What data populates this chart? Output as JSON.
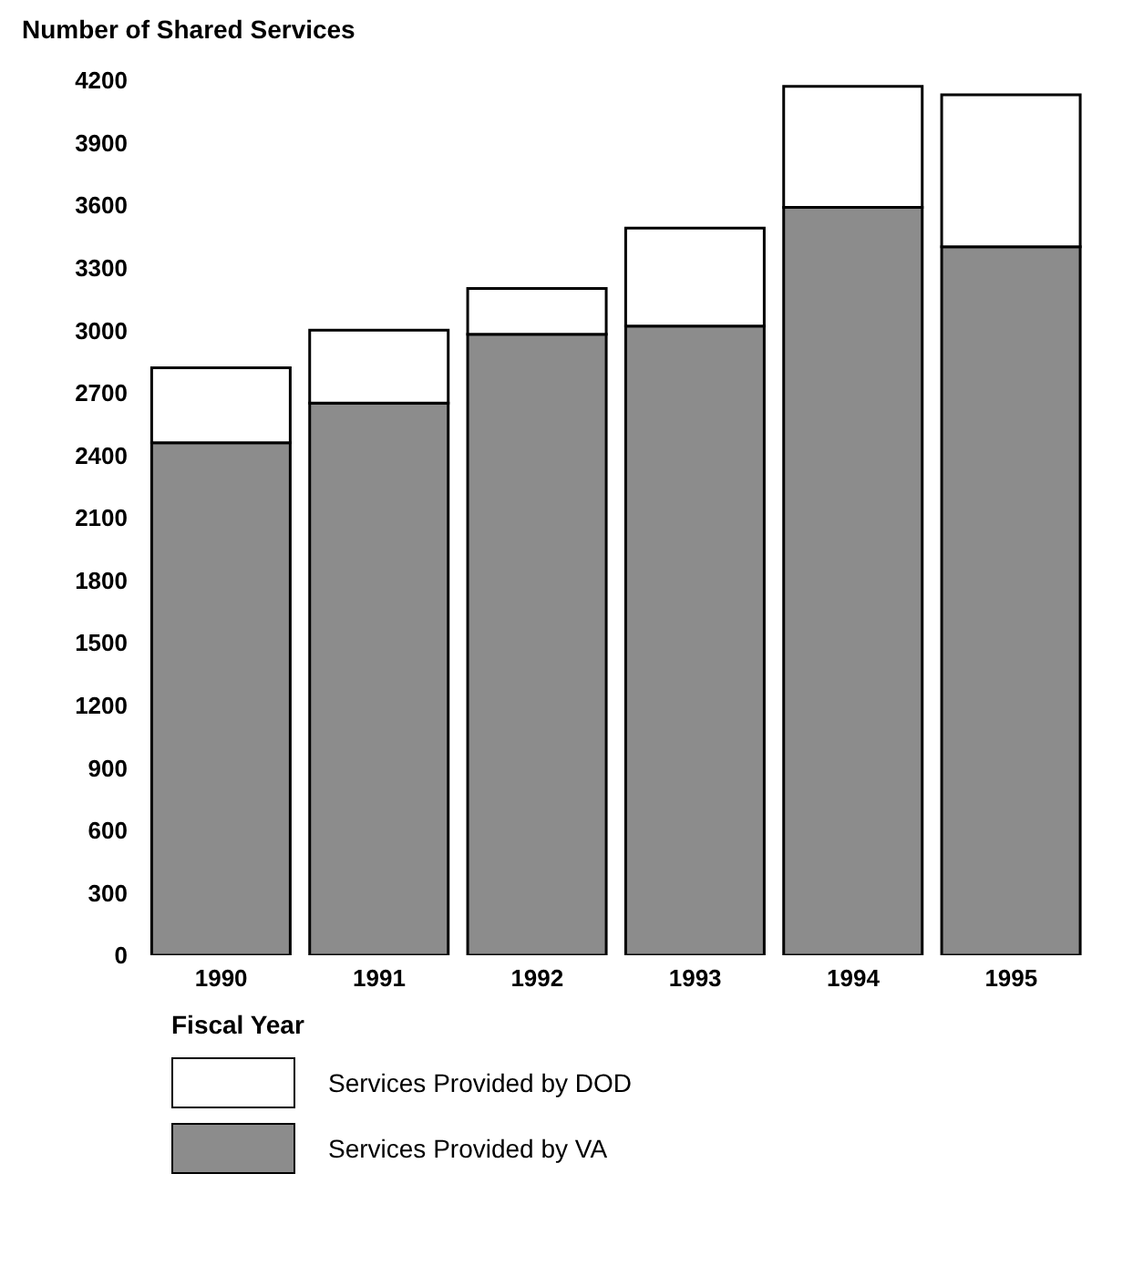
{
  "chart_data": {
    "type": "bar",
    "ylabel": "Number of Shared Services",
    "xlabel": "Fiscal Year",
    "categories": [
      "1990",
      "1991",
      "1992",
      "1993",
      "1994",
      "1995"
    ],
    "stacked": true,
    "ylim": [
      0,
      4200
    ],
    "yticks": [
      0,
      300,
      600,
      900,
      1200,
      1500,
      1800,
      2100,
      2400,
      2700,
      3000,
      3300,
      3600,
      3900,
      4200
    ],
    "grid": false,
    "legend": "bottom",
    "series": [
      {
        "name": "Services Provided by VA",
        "color": "#8c8c8c",
        "values": [
          2460,
          2650,
          2980,
          3020,
          3590,
          3400
        ]
      },
      {
        "name": "Services Provided by DOD",
        "color": "#ffffff",
        "values": [
          360,
          350,
          220,
          470,
          580,
          730
        ]
      }
    ]
  }
}
